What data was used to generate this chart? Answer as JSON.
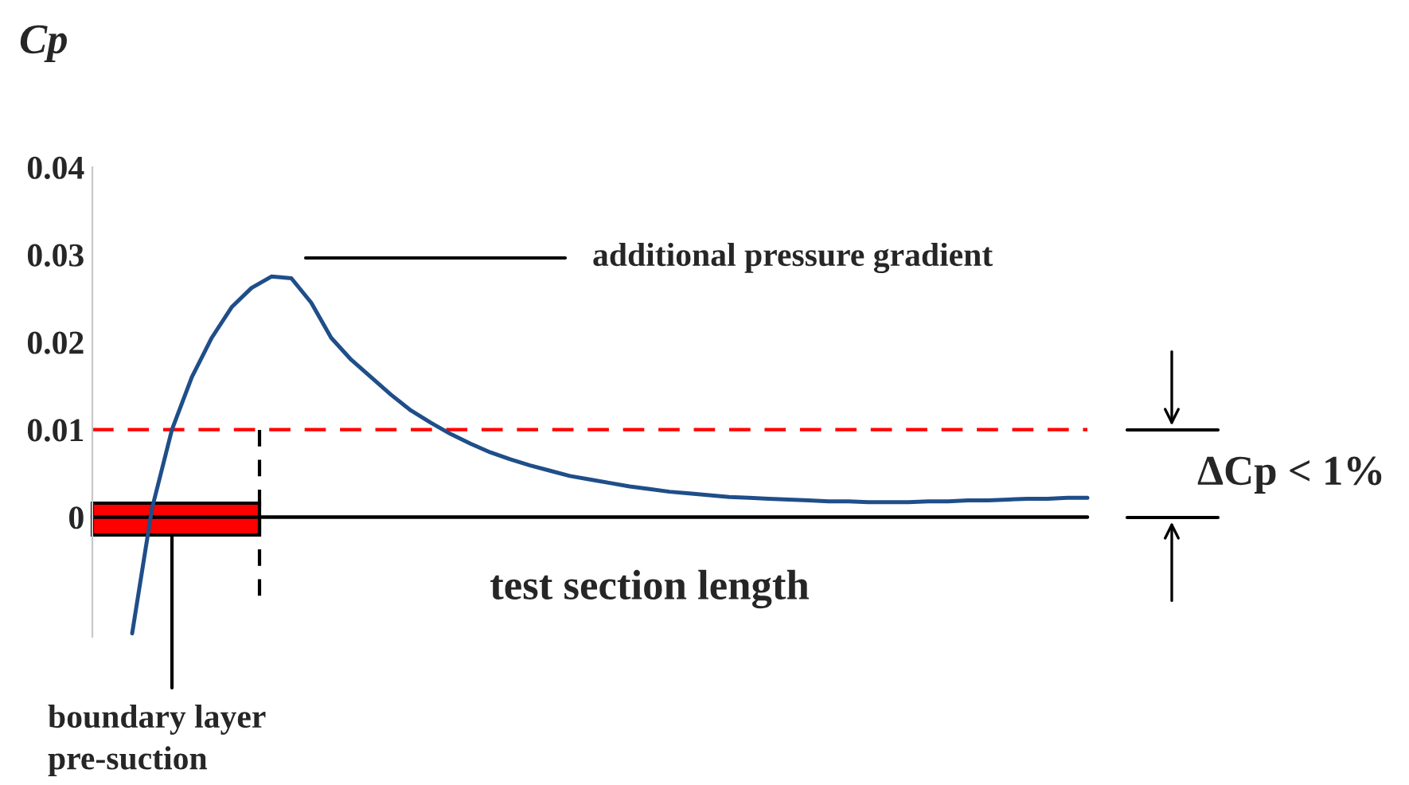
{
  "chart_data": {
    "type": "line",
    "ylabel": "Cp",
    "categories": [
      null,
      null,
      null,
      null,
      null,
      null,
      null,
      null,
      null,
      null,
      null,
      null,
      null,
      null,
      null,
      null,
      null,
      null,
      null,
      null,
      null,
      null,
      null,
      null,
      null,
      null,
      null,
      null,
      null,
      null,
      null,
      null,
      null,
      null,
      null,
      null,
      null,
      null,
      null,
      null,
      null,
      null,
      null,
      null,
      null,
      null,
      null,
      null,
      null,
      null,
      null
    ],
    "series": [
      {
        "color": "#1f4e89",
        "values": [
          null,
          null,
          -0.0133,
          0.001,
          0.01,
          0.016,
          0.0205,
          0.024,
          0.0262,
          0.0275,
          0.0273,
          0.0245,
          0.0205,
          0.018,
          0.016,
          0.014,
          0.0122,
          0.0108,
          0.0095,
          0.0084,
          0.0074,
          0.0066,
          0.0059,
          0.0053,
          0.0047,
          0.0043,
          0.0039,
          0.0035,
          0.0032,
          0.0029,
          0.0027,
          0.0025,
          0.0023,
          0.0022,
          0.0021,
          0.002,
          0.0019,
          0.0018,
          0.0018,
          0.0017,
          0.0017,
          0.0017,
          0.0018,
          0.0018,
          0.0019,
          0.0019,
          0.002,
          0.0021,
          0.0021,
          0.0022,
          0.0022
        ]
      }
    ],
    "ylim": [
      -0.0137,
      0.04
    ],
    "yticks": [
      0,
      0.01,
      0.02,
      0.03,
      0.04
    ],
    "ref_lines": [
      {
        "axis": "y",
        "value": 0,
        "color": "#000000",
        "line_style": "solid"
      },
      {
        "axis": "y",
        "value": 0.01,
        "color": "#ff0000",
        "line_style": "dashed"
      }
    ],
    "annotations": [
      "additional pressure gradient",
      "test section length",
      "boundary layer\npre-suction",
      "ΔCp < 1%"
    ],
    "grid": false,
    "legend": false
  }
}
